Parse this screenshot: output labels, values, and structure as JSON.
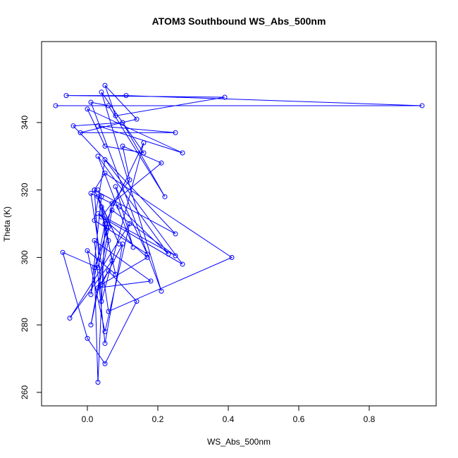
{
  "chart_data": {
    "type": "line",
    "title": "ATOM3 Southbound WS_Abs_500nm",
    "xlabel": "WS_Abs_500nm",
    "ylabel": "Theta (K)",
    "xlim": [
      -0.13,
      0.99
    ],
    "ylim": [
      256,
      364
    ],
    "xticks": [
      0.0,
      0.2,
      0.4,
      0.6,
      0.8
    ],
    "xtick_labels": [
      "0.0",
      "0.2",
      "0.4",
      "0.6",
      "0.8"
    ],
    "yticks": [
      260,
      280,
      300,
      320,
      340
    ],
    "ytick_labels": [
      "260",
      "280",
      "300",
      "320",
      "340"
    ],
    "grid": false,
    "legend": "none",
    "series_color": "#0000ff",
    "marker": "open-circle",
    "series": [
      {
        "x": [
          -0.09,
          0.95,
          0.11,
          -0.06,
          0.39,
          0.08,
          0.05,
          0.14,
          -0.02,
          0.25,
          0.03,
          0.27,
          0.0,
          0.05,
          0.16,
          0.04,
          0.21,
          0.01,
          0.06,
          0.22,
          0.1,
          -0.04,
          0.25,
          0.02,
          0.05,
          0.41,
          0.06,
          0.01,
          0.09,
          0.23,
          0.03,
          0.13,
          0.08,
          0.17,
          0.02,
          0.05,
          0.27,
          0.04,
          0.12,
          0.1,
          0.21,
          0.07,
          0.03,
          -0.07,
          0.0,
          0.05,
          0.14,
          0.06,
          0.03,
          0.18,
          0.02,
          0.05,
          0.1,
          0.04,
          0.17,
          0.03,
          0.25,
          0.07,
          0.01,
          0.06,
          0.05,
          0.16,
          0.04,
          0.02,
          0.09,
          0.03,
          0.08,
          0.0,
          0.05,
          0.12,
          -0.05,
          0.07,
          0.04,
          0.06,
          0.02,
          0.03,
          0.05,
          0.01,
          0.04,
          0.03
        ],
        "y": [
          345,
          345,
          348,
          348,
          347.5,
          342,
          351,
          341,
          337,
          337,
          339,
          331,
          344,
          333,
          331,
          349,
          290,
          346,
          345,
          318,
          340,
          339,
          307,
          320,
          325,
          300,
          284,
          319,
          315,
          301,
          330,
          303,
          321,
          301,
          311,
          329,
          298,
          312,
          323,
          333,
          328,
          316,
          297,
          301.5,
          276,
          268.5,
          287,
          296,
          291,
          293,
          305,
          274.5,
          304,
          292,
          300,
          313,
          300.5,
          314,
          280,
          305,
          310,
          334,
          287,
          320,
          304,
          318,
          295,
          302,
          278,
          310,
          282,
          299,
          315,
          309,
          297,
          263,
          310,
          289,
          318,
          320
        ]
      }
    ]
  }
}
